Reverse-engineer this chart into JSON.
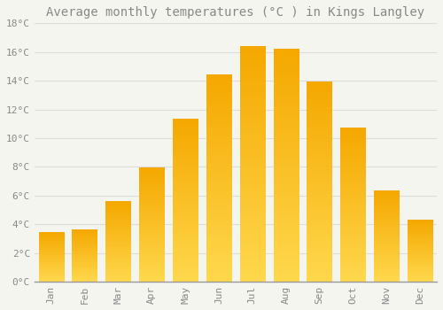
{
  "title": "Average monthly temperatures (°C ) in Kings Langley",
  "months": [
    "Jan",
    "Feb",
    "Mar",
    "Apr",
    "May",
    "Jun",
    "Jul",
    "Aug",
    "Sep",
    "Oct",
    "Nov",
    "Dec"
  ],
  "values": [
    3.4,
    3.6,
    5.6,
    7.9,
    11.3,
    14.4,
    16.4,
    16.2,
    13.9,
    10.7,
    6.3,
    4.3
  ],
  "bar_color_top": "#F5A800",
  "bar_color_bottom": "#FFD84D",
  "background_color": "#F5F5F0",
  "grid_color": "#DDDDDD",
  "text_color": "#888888",
  "ylim": [
    0,
    18
  ],
  "ytick_step": 2,
  "title_fontsize": 10,
  "tick_fontsize": 8
}
